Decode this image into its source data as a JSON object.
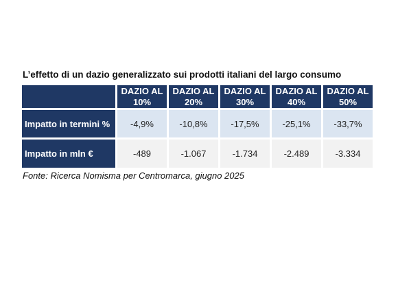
{
  "title": "L’effetto di un dazio generalizzato sui prodotti italiani del largo consumo",
  "table": {
    "header": [
      "",
      "DAZIO AL 10%",
      "DAZIO AL 20%",
      "DAZIO AL 30%",
      "DAZIO AL 40%",
      "DAZIO AL 50%"
    ],
    "rows": [
      [
        "Impatto in termini %",
        "-4,9%",
        "-10,8%",
        "-17,5%",
        "-25,1%",
        "-33,7%"
      ],
      [
        "Impatto in mln €",
        "-489",
        "-1.067",
        "-1.734",
        "-2.489",
        "-3.334"
      ]
    ]
  },
  "source": "Fonte: Ricerca Nomisma per Centromarca, giugno 2025"
}
